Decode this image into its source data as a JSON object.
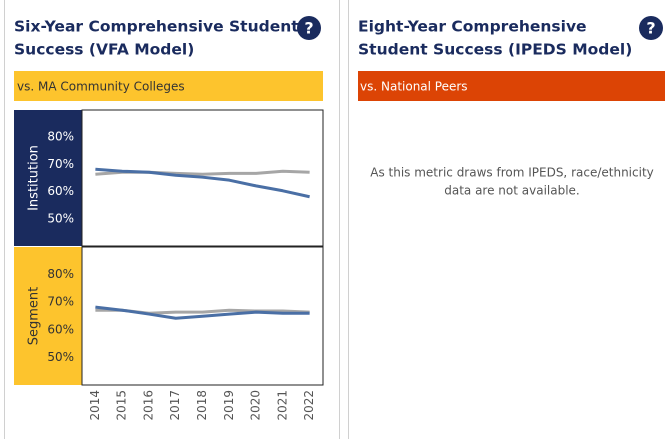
{
  "left_panel": {
    "title_lines": [
      "Six-Year Comprehensive Student",
      "Success (VFA Model)"
    ],
    "help_icon": "?",
    "comparison": "vs. MA Community Colleges"
  },
  "right_panel": {
    "title_lines": [
      "Eight-Year Comprehensive",
      "Student Success (IPEDS Model)"
    ],
    "help_icon": "?",
    "comparison": "vs. National Peers",
    "message_lines": [
      "As this metric draws from IPEDS, race/ethnicity",
      "data are not available."
    ]
  },
  "chart_data": {
    "type": "line",
    "categories": [
      "2014",
      "2015",
      "2016",
      "2017",
      "2018",
      "2019",
      "2020",
      "2021",
      "2022"
    ],
    "panels": [
      {
        "label": "Institution",
        "ylim": [
          40,
          90
        ],
        "yticks": [
          {
            "value": 50,
            "label": "50%"
          },
          {
            "value": 60,
            "label": "60%"
          },
          {
            "value": 70,
            "label": "70%"
          },
          {
            "value": 80,
            "label": "80%"
          }
        ],
        "series": [
          {
            "color": "#a6a6a6",
            "values": [
              66.4,
              67.1,
              67.1,
              66.7,
              66.4,
              66.7,
              66.7,
              67.5,
              67.1
            ]
          },
          {
            "color": "#4a6fa5",
            "values": [
              68.2,
              67.5,
              67.1,
              66.0,
              65.3,
              64.2,
              62.1,
              60.3,
              58.1
            ]
          }
        ]
      },
      {
        "label": "Segment",
        "ylim": [
          40,
          90
        ],
        "yticks": [
          {
            "value": 50,
            "label": "50%"
          },
          {
            "value": 60,
            "label": "60%"
          },
          {
            "value": 70,
            "label": "70%"
          },
          {
            "value": 80,
            "label": "80%"
          }
        ],
        "series": [
          {
            "color": "#a6a6a6",
            "values": [
              67.1,
              67.1,
              66.0,
              66.4,
              66.4,
              67.1,
              66.8,
              66.8,
              66.4
            ]
          },
          {
            "color": "#4a6fa5",
            "values": [
              68.2,
              67.1,
              65.7,
              64.2,
              64.9,
              65.7,
              66.4,
              66.0,
              66.0
            ]
          }
        ]
      }
    ]
  }
}
